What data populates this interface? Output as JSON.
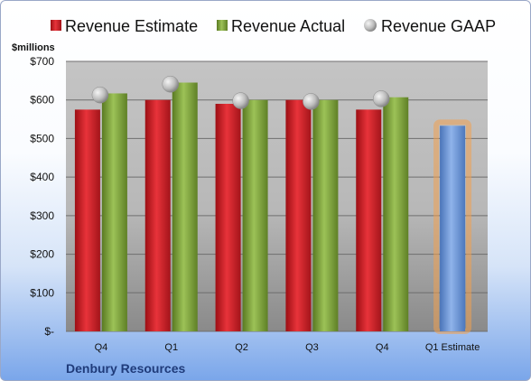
{
  "chart_data": {
    "type": "bar",
    "categories": [
      "Q4",
      "Q1",
      "Q2",
      "Q3",
      "Q4",
      "Q1 Estimate"
    ],
    "series": [
      {
        "name": "Revenue Estimate",
        "values": [
          575,
          600,
          590,
          600,
          575,
          null
        ],
        "color": "#d21f26"
      },
      {
        "name": "Revenue Actual",
        "values": [
          617,
          645,
          600,
          600,
          607,
          null
        ],
        "color": "#7ea23a"
      },
      {
        "name": "Revenue GAAP",
        "values": [
          613,
          641,
          598,
          596,
          603,
          null
        ],
        "color": "#b8b8b8",
        "marker": "circle"
      },
      {
        "name": "",
        "values": [
          null,
          null,
          null,
          null,
          null,
          533
        ],
        "color": "#6b96d6",
        "highlight": "#f0a050"
      }
    ],
    "ylabel": "$millions",
    "ylim": [
      0,
      700
    ],
    "yticks": [
      0,
      100,
      200,
      300,
      400,
      500,
      600,
      700
    ],
    "ytick_labels": [
      "$-",
      "$100",
      "$200",
      "$300",
      "$400",
      "$500",
      "$600",
      "$700"
    ],
    "legend": [
      "Revenue Estimate",
      "Revenue Actual",
      "Revenue GAAP"
    ],
    "legend_placement": "top",
    "grid": true,
    "company": "Denbury Resources"
  }
}
